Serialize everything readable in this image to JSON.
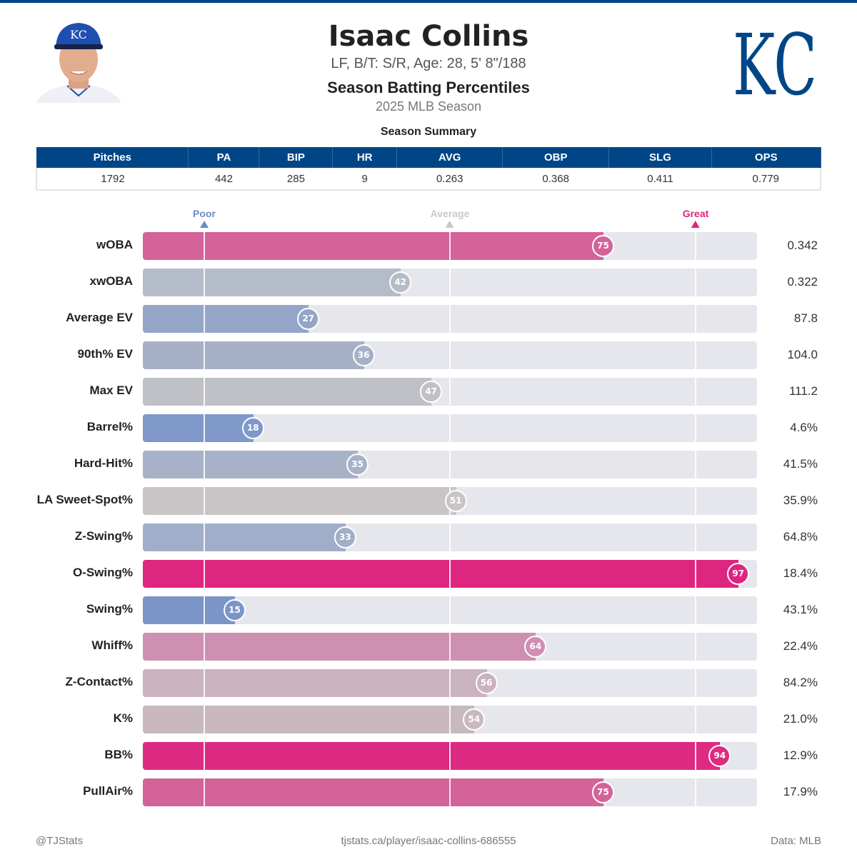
{
  "header": {
    "name": "Isaac Collins",
    "subtitle": "LF, B/T: S/R, Age: 28, 5' 8\"/188",
    "title": "Season Batting Percentiles",
    "season": "2025 MLB Season",
    "logo_text": "KC"
  },
  "summary": {
    "title": "Season Summary",
    "columns": [
      "Pitches",
      "PA",
      "BIP",
      "HR",
      "AVG",
      "OBP",
      "SLG",
      "OPS"
    ],
    "values": [
      "1792",
      "442",
      "285",
      "9",
      "0.263",
      "0.368",
      "0.411",
      "0.779"
    ]
  },
  "markers": {
    "poor": "Poor",
    "average": "Average",
    "great": "Great",
    "poor_color": "#6b8cc9",
    "average_color": "#c8c8c8",
    "great_color": "#e0257f"
  },
  "metrics": [
    {
      "label": "wOBA",
      "percentile": 75,
      "value": "0.342",
      "color": "#d4639a"
    },
    {
      "label": "xwOBA",
      "percentile": 42,
      "value": "0.322",
      "color": "#b5bcc9"
    },
    {
      "label": "Average EV",
      "percentile": 27,
      "value": "87.8",
      "color": "#94a5c8"
    },
    {
      "label": "90th% EV",
      "percentile": 36,
      "value": "104.0",
      "color": "#a6b1c8"
    },
    {
      "label": "Max EV",
      "percentile": 47,
      "value": "111.2",
      "color": "#c0c1c7"
    },
    {
      "label": "Barrel%",
      "percentile": 18,
      "value": "4.6%",
      "color": "#7f98c9"
    },
    {
      "label": "Hard-Hit%",
      "percentile": 35,
      "value": "41.5%",
      "color": "#a7b2c9"
    },
    {
      "label": "LA Sweet-Spot%",
      "percentile": 51,
      "value": "35.9%",
      "color": "#c9c4c6"
    },
    {
      "label": "Z-Swing%",
      "percentile": 33,
      "value": "64.8%",
      "color": "#a1aec9"
    },
    {
      "label": "O-Swing%",
      "percentile": 97,
      "value": "18.4%",
      "color": "#de2580"
    },
    {
      "label": "Swing%",
      "percentile": 15,
      "value": "43.1%",
      "color": "#7b95c9"
    },
    {
      "label": "Whiff%",
      "percentile": 64,
      "value": "22.4%",
      "color": "#cf8fb0"
    },
    {
      "label": "Z-Contact%",
      "percentile": 56,
      "value": "84.2%",
      "color": "#cbb2bf"
    },
    {
      "label": "K%",
      "percentile": 54,
      "value": "21.0%",
      "color": "#c9b8c0"
    },
    {
      "label": "BB%",
      "percentile": 94,
      "value": "12.9%",
      "color": "#dd2a82"
    },
    {
      "label": "PullAir%",
      "percentile": 75,
      "value": "17.9%",
      "color": "#d4639a"
    }
  ],
  "footer": {
    "left": "@TJStats",
    "center": "tjstats.ca/player/isaac-collins-686555",
    "right": "Data: MLB"
  }
}
